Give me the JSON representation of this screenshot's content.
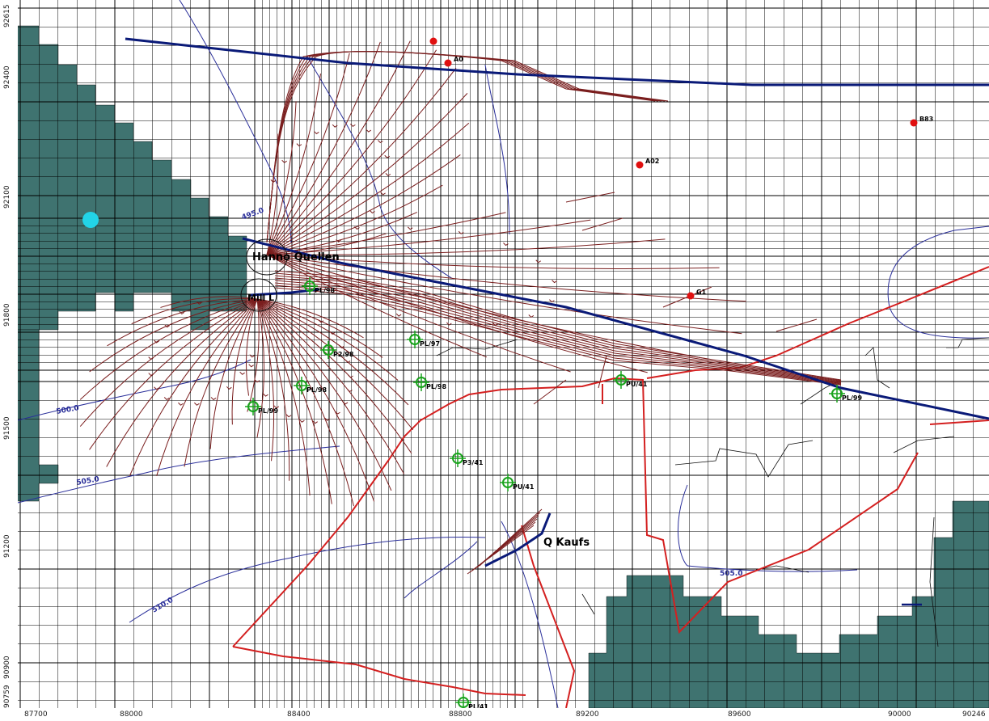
{
  "x_axis": {
    "ticks": [
      "87700",
      "88000",
      "88400",
      "88800",
      "89200",
      "89600",
      "90000",
      "90246"
    ]
  },
  "y_axis": {
    "ticks": [
      "92615",
      "92400",
      "92100",
      "91800",
      "91500",
      "91200",
      "90900",
      "90759"
    ]
  },
  "wells": [
    {
      "label": "PL/99"
    },
    {
      "label": "PL/98"
    },
    {
      "label": "P2/98"
    },
    {
      "label": "PL/98"
    },
    {
      "label": "PL/97"
    },
    {
      "label": "PL/98"
    },
    {
      "label": "PU/41"
    },
    {
      "label": "P3/41"
    },
    {
      "label": "PU/41"
    },
    {
      "label": "PL/99"
    },
    {
      "label": "PL/41"
    }
  ],
  "points": [
    {
      "label": ""
    },
    {
      "label": "B83"
    },
    {
      "label": "A02"
    },
    {
      "label": "G1"
    },
    {
      "label": "A0"
    }
  ],
  "sources": [
    {
      "label": "Hanno Quellen"
    },
    {
      "label": "Mill L"
    },
    {
      "label": "Q Kaufs"
    }
  ],
  "contours": [
    "495.0",
    "500.0",
    "505.0",
    "510.0",
    "505.0"
  ],
  "colors": {
    "grid": "#000000",
    "inactive": "#3f7370",
    "flowline": "#7a1e1e",
    "river": "#0a1a78",
    "boundary": "#d42020",
    "contour": "#2a2f9a",
    "well": "#19a31c",
    "point": "#e01010",
    "marker": "#22d4e8"
  }
}
